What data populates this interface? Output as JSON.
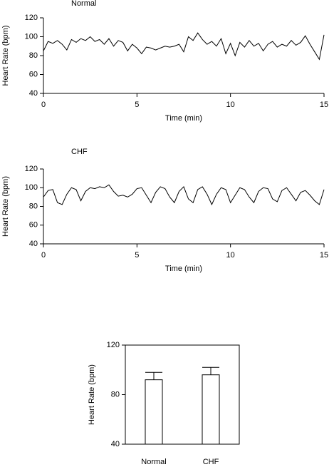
{
  "chart_data": [
    {
      "type": "line",
      "title": "Normal",
      "xlabel": "Time (min)",
      "ylabel": "Heart Rate (bpm)",
      "color": "#000000",
      "x": [
        0,
        0.25,
        0.5,
        0.75,
        1,
        1.25,
        1.5,
        1.75,
        2,
        2.25,
        2.5,
        2.75,
        3,
        3.25,
        3.5,
        3.75,
        4,
        4.25,
        4.5,
        4.75,
        5,
        5.25,
        5.5,
        5.75,
        6,
        6.25,
        6.5,
        6.75,
        7,
        7.25,
        7.5,
        7.75,
        8,
        8.25,
        8.5,
        8.75,
        9,
        9.25,
        9.5,
        9.75,
        10,
        10.25,
        10.5,
        10.75,
        11,
        11.25,
        11.5,
        11.75,
        12,
        12.25,
        12.5,
        12.75,
        13,
        13.25,
        13.5,
        13.75,
        14,
        14.25,
        14.5,
        14.75,
        15
      ],
      "values": [
        85,
        95,
        93,
        96,
        92,
        86,
        97,
        94,
        98,
        96,
        100,
        95,
        97,
        92,
        98,
        90,
        96,
        94,
        85,
        92,
        88,
        82,
        89,
        88,
        86,
        88,
        90,
        89,
        90,
        92,
        84,
        100,
        96,
        104,
        97,
        92,
        95,
        90,
        98,
        82,
        93,
        80,
        94,
        89,
        96,
        90,
        93,
        85,
        92,
        95,
        89,
        92,
        90,
        96,
        91,
        94,
        101,
        92,
        84,
        76,
        102
      ],
      "xlim": [
        0,
        15
      ],
      "xticks": [
        0,
        5,
        10,
        15
      ],
      "ylim": [
        40,
        120
      ],
      "yticks": [
        40,
        60,
        80,
        100,
        120
      ]
    },
    {
      "type": "line",
      "title": "CHF",
      "xlabel": "Time (min)",
      "ylabel": "Heart Rate (bpm)",
      "color": "#000000",
      "x": [
        0,
        0.25,
        0.5,
        0.75,
        1,
        1.25,
        1.5,
        1.75,
        2,
        2.25,
        2.5,
        2.75,
        3,
        3.25,
        3.5,
        3.75,
        4,
        4.25,
        4.5,
        4.75,
        5,
        5.25,
        5.5,
        5.75,
        6,
        6.25,
        6.5,
        6.75,
        7,
        7.25,
        7.5,
        7.75,
        8,
        8.25,
        8.5,
        8.75,
        9,
        9.25,
        9.5,
        9.75,
        10,
        10.25,
        10.5,
        10.75,
        11,
        11.25,
        11.5,
        11.75,
        12,
        12.25,
        12.5,
        12.75,
        13,
        13.25,
        13.5,
        13.75,
        14,
        14.25,
        14.5,
        14.75,
        15
      ],
      "values": [
        90,
        97,
        98,
        84,
        82,
        93,
        100,
        98,
        86,
        96,
        100,
        99,
        101,
        100,
        103,
        96,
        91,
        92,
        90,
        93,
        99,
        100,
        92,
        84,
        95,
        101,
        99,
        90,
        84,
        96,
        101,
        88,
        84,
        98,
        101,
        93,
        82,
        93,
        100,
        98,
        84,
        92,
        100,
        98,
        90,
        84,
        96,
        100,
        99,
        88,
        85,
        97,
        100,
        93,
        86,
        95,
        97,
        92,
        86,
        82,
        98
      ],
      "xlim": [
        0,
        15
      ],
      "xticks": [
        0,
        5,
        10,
        15
      ],
      "ylim": [
        40,
        120
      ],
      "yticks": [
        40,
        60,
        80,
        100,
        120
      ]
    },
    {
      "type": "bar",
      "ylabel": "Heart Rate (bpm)",
      "categories": [
        "Normal",
        "CHF"
      ],
      "values": [
        92,
        96
      ],
      "errors": [
        6,
        6
      ],
      "color": "#ffffff",
      "ylim": [
        40,
        120
      ],
      "yticks": [
        40,
        80,
        120
      ]
    }
  ]
}
